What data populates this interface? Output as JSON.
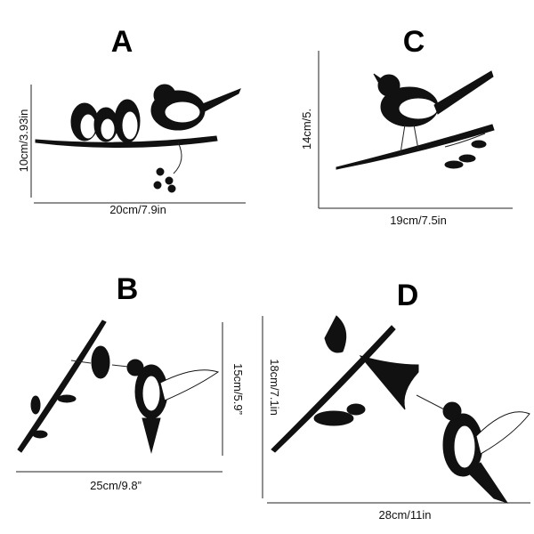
{
  "products": [
    {
      "label": "A",
      "height": "10cm/3.93in",
      "width": "20cm/7.9in"
    },
    {
      "label": "C",
      "height": "14cm/5.",
      "width": "19cm/7.5in"
    },
    {
      "label": "B",
      "height": "15cm/5.9”",
      "width": "25cm/9.8”"
    },
    {
      "label": "D",
      "height": "18cm/7.1in",
      "width": "28cm/11in"
    }
  ]
}
